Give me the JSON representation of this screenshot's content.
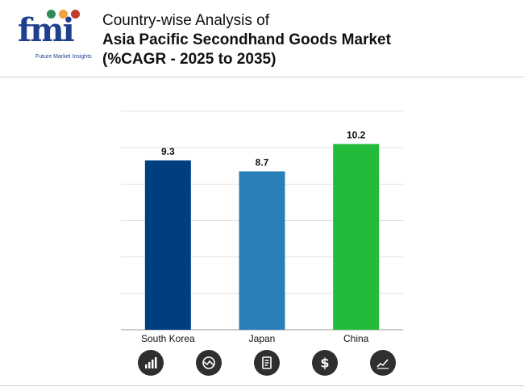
{
  "logo": {
    "word": "fmi",
    "tagline": "Future Market Insights",
    "dot_colors": [
      "#2e8b57",
      "#f2a33a",
      "#c0392b"
    ]
  },
  "title": {
    "line1": "Country-wise Analysis of",
    "line2": "Asia Pacific Secondhand Goods Market",
    "line3": "(%CAGR - 2025 to 2035)"
  },
  "chart_data": {
    "type": "bar",
    "categories": [
      "South Korea",
      "Japan",
      "China"
    ],
    "values": [
      9.3,
      8.7,
      10.2
    ],
    "value_labels": [
      "9.3",
      "8.7",
      "10.2"
    ],
    "colors": [
      "#003f7f",
      "#2a7fb8",
      "#22bb3a"
    ],
    "ylim": [
      0,
      12
    ],
    "grid": true,
    "legend": "none"
  },
  "footer_icons": [
    "growth-chart-icon",
    "trend-analysis-icon",
    "report-document-icon",
    "dollar-icon",
    "line-chart-icon"
  ]
}
